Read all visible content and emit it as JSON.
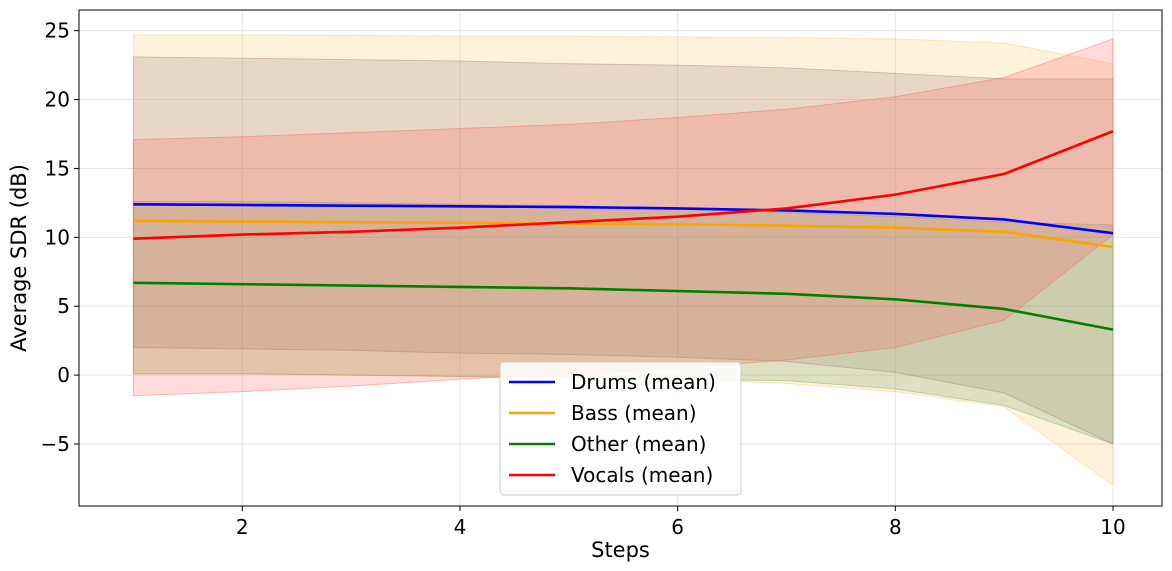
{
  "chart_data": {
    "type": "line",
    "title": "",
    "xlabel": "Steps",
    "ylabel": "Average SDR (dB)",
    "xlim": [
      0.5,
      10.45
    ],
    "ylim": [
      -9.5,
      26.5
    ],
    "xticks": [
      2,
      4,
      6,
      8,
      10
    ],
    "yticks": [
      -5,
      0,
      5,
      10,
      15,
      20,
      25
    ],
    "ytick_labels": [
      "−5",
      "0",
      "5",
      "10",
      "15",
      "20",
      "25"
    ],
    "grid": true,
    "legend_position": "bottom-center",
    "x": [
      1,
      2,
      3,
      4,
      5,
      6,
      7,
      8,
      9,
      10
    ],
    "series": [
      {
        "name": "Drums (mean)",
        "color": "#0000ff",
        "mean": [
          12.4,
          12.35,
          12.3,
          12.25,
          12.2,
          12.1,
          11.95,
          11.7,
          11.3,
          10.3
        ],
        "upper": [
          23.1,
          23.0,
          22.9,
          22.8,
          22.6,
          22.5,
          22.3,
          21.9,
          21.5,
          21.5
        ],
        "lower": [
          2.0,
          1.9,
          1.8,
          1.6,
          1.5,
          1.3,
          1.0,
          0.2,
          -1.3,
          -5.0
        ],
        "band_color": "#7a5a7a"
      },
      {
        "name": "Bass (mean)",
        "color": "#ffa500",
        "mean": [
          11.2,
          11.15,
          11.1,
          11.05,
          11.0,
          10.95,
          10.85,
          10.7,
          10.4,
          9.3
        ],
        "upper": [
          24.7,
          24.7,
          24.65,
          24.6,
          24.6,
          24.55,
          24.5,
          24.4,
          24.1,
          22.6
        ],
        "lower": [
          0.1,
          0.1,
          0.0,
          -0.1,
          -0.2,
          -0.3,
          -0.6,
          -1.2,
          -2.3,
          -8.0
        ],
        "band_color": "#ffc04d"
      },
      {
        "name": "Other (mean)",
        "color": "#008000",
        "mean": [
          6.7,
          6.6,
          6.5,
          6.4,
          6.3,
          6.1,
          5.9,
          5.5,
          4.8,
          3.3
        ],
        "upper": [
          12.6,
          12.6,
          12.5,
          12.4,
          12.3,
          12.1,
          11.8,
          11.5,
          11.1,
          10.9
        ],
        "lower": [
          0.1,
          0.1,
          0.0,
          -0.1,
          -0.2,
          -0.3,
          -0.4,
          -1.0,
          -2.2,
          -5.0
        ],
        "band_color": "#5aa05a"
      },
      {
        "name": "Vocals (mean)",
        "color": "#ff0000",
        "mean": [
          9.9,
          10.2,
          10.4,
          10.7,
          11.1,
          11.5,
          12.1,
          13.1,
          14.6,
          17.7
        ],
        "upper": [
          17.1,
          17.3,
          17.6,
          17.9,
          18.2,
          18.7,
          19.3,
          20.2,
          21.6,
          24.4
        ],
        "lower": [
          -1.5,
          -1.2,
          -0.8,
          -0.3,
          0.1,
          0.5,
          1.1,
          2.0,
          4.0,
          10.2
        ],
        "band_color": "#ff4d4d"
      }
    ]
  }
}
